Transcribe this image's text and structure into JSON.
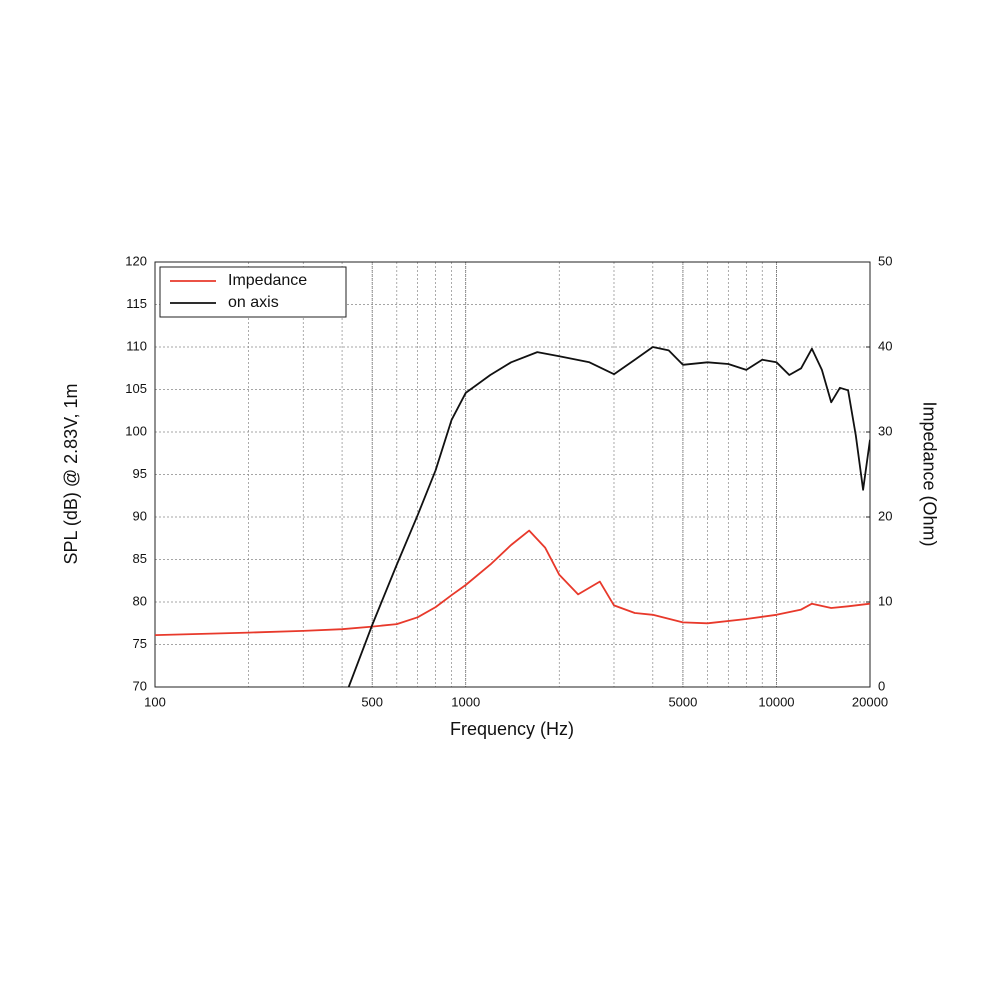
{
  "chart_data": {
    "type": "line",
    "xlabel": "Frequency (Hz)",
    "ylabel": "SPL (dB) @ 2.83V, 1m",
    "y2label": "Impedance (Ohm)",
    "xscale": "log",
    "grid": true,
    "legend": "top-left",
    "xlim": [
      100,
      20000
    ],
    "xticks": [
      100,
      500,
      1000,
      5000,
      10000,
      20000
    ],
    "ylim": [
      70,
      120
    ],
    "yticks": [
      70,
      75,
      80,
      85,
      90,
      95,
      100,
      105,
      110,
      115,
      120
    ],
    "y2lim": [
      0,
      50
    ],
    "y2ticks": [
      0,
      10,
      20,
      30,
      40,
      50
    ],
    "series": [
      {
        "name": "Impedance",
        "color": "#e8392b",
        "axis": "y2",
        "x": [
          100,
          200,
          300,
          400,
          500,
          600,
          700,
          800,
          900,
          1000,
          1200,
          1400,
          1600,
          1800,
          2000,
          2300,
          2700,
          3000,
          3500,
          4000,
          5000,
          6000,
          8000,
          10000,
          12000,
          13000,
          15000,
          17000,
          20000
        ],
        "values": [
          6.1,
          6.4,
          6.6,
          6.8,
          7.1,
          7.4,
          8.2,
          9.4,
          10.8,
          12,
          14.4,
          16.7,
          18.4,
          16.4,
          13.2,
          10.9,
          12.4,
          9.6,
          8.7,
          8.5,
          7.6,
          7.5,
          8,
          8.5,
          9.1,
          9.8,
          9.3,
          9.5,
          9.8
        ]
      },
      {
        "name": "on axis",
        "color": "#111111",
        "x": [
          420,
          500,
          600,
          700,
          800,
          900,
          1000,
          1200,
          1400,
          1700,
          2000,
          2500,
          3000,
          3500,
          4000,
          4500,
          5000,
          6000,
          7000,
          8000,
          9000,
          10000,
          11000,
          12000,
          13000,
          14000,
          15000,
          16000,
          17000,
          18000,
          19000,
          20000
        ],
        "values": [
          70,
          77.3,
          84.4,
          90.2,
          95.5,
          101.4,
          104.6,
          106.7,
          108.2,
          109.4,
          108.9,
          108.2,
          106.8,
          108.5,
          110,
          109.6,
          107.9,
          108.2,
          108,
          107.3,
          108.5,
          108.2,
          106.7,
          107.5,
          109.8,
          107.3,
          103.5,
          105.2,
          104.9,
          99.6,
          93.2,
          99.1
        ]
      }
    ]
  }
}
